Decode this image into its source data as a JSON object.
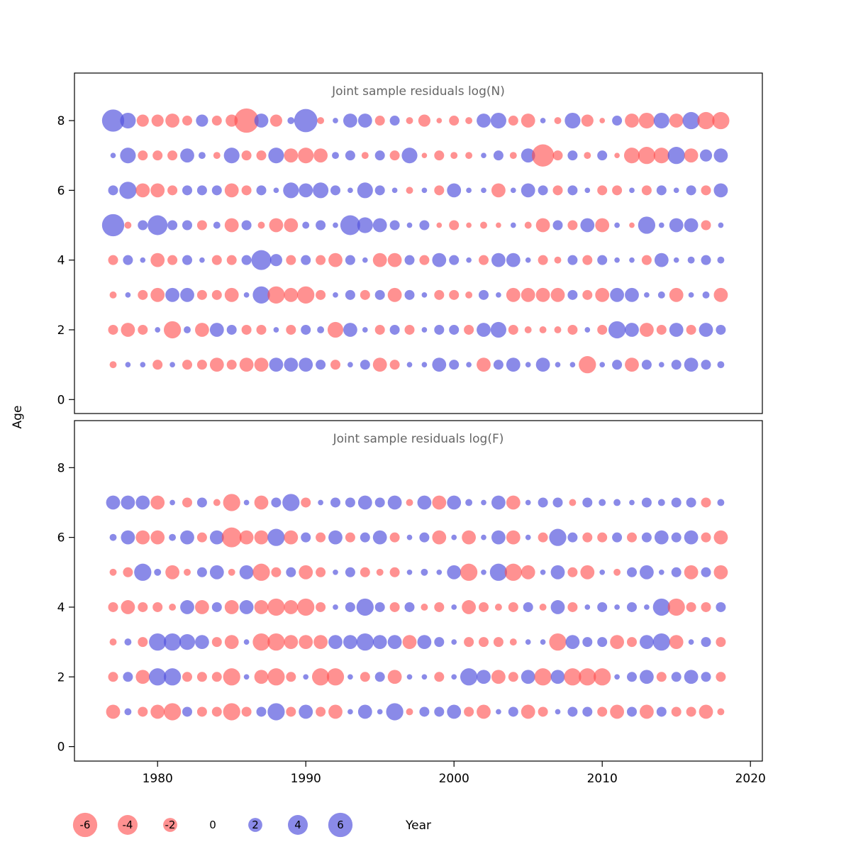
{
  "figure": {
    "ylab": "Age",
    "xlab": "Year",
    "x_ticks": [
      1980,
      1990,
      2000,
      2010,
      2020
    ],
    "y_ticks": [
      0,
      2,
      4,
      6,
      8
    ],
    "colors": {
      "negative": "#ff4d4d",
      "positive": "#5252dd",
      "negative_opacity": 0.62,
      "positive_opacity": 0.68,
      "title_gray": "#666666",
      "axis_black": "#000000"
    },
    "legend": {
      "values": [
        -6,
        -4,
        -2,
        0,
        2,
        4,
        6
      ]
    }
  },
  "chart_data": [
    {
      "type": "scatter",
      "subtype": "bubble-residuals",
      "title": "Joint sample residuals log(N)",
      "xlabel": "Year",
      "ylabel": "Age",
      "xlim": [
        1975,
        2020
      ],
      "ylim": [
        0,
        8.5
      ],
      "years": [
        1977,
        1978,
        1979,
        1980,
        1981,
        1982,
        1983,
        1984,
        1985,
        1986,
        1987,
        1988,
        1989,
        1990,
        1991,
        1992,
        1993,
        1994,
        1995,
        1996,
        1997,
        1998,
        1999,
        2000,
        2001,
        2002,
        2003,
        2004,
        2005,
        2006,
        2007,
        2008,
        2009,
        2010,
        2011,
        2012,
        2013,
        2014,
        2015,
        2016,
        2017,
        2018
      ],
      "series": [
        {
          "age": 8,
          "values": [
            5,
            2.5,
            -1.5,
            -1.5,
            -2,
            -1,
            1.5,
            -1,
            -1.5,
            -6,
            2,
            -1.5,
            0.5,
            5.5,
            -0.5,
            0.3,
            2,
            2,
            -1,
            1,
            -0.5,
            -1.5,
            -0.3,
            -1,
            -0.5,
            2,
            2.5,
            -1,
            -2,
            0.3,
            -0.5,
            2.5,
            -1.5,
            -0.3,
            1,
            -2,
            -2.5,
            2.5,
            -2,
            3,
            -3,
            -3
          ]
        },
        {
          "age": 7,
          "values": [
            0.3,
            2.5,
            -1,
            -1,
            -1,
            2,
            0.5,
            -0.5,
            2.5,
            -1,
            -1,
            2.5,
            -2,
            -2.5,
            -2,
            0.5,
            1,
            -0.5,
            1,
            -1,
            2.5,
            -0.3,
            -1,
            -0.5,
            -0.5,
            0.3,
            1,
            -0.5,
            2,
            -5,
            -1,
            1,
            -0.5,
            1,
            -0.3,
            -2.5,
            -3,
            -2.5,
            3,
            -2,
            1.5,
            2
          ]
        },
        {
          "age": 6,
          "values": [
            1,
            3,
            -2,
            -2,
            -1,
            1,
            1,
            1,
            -2,
            -1,
            1,
            0.3,
            2.5,
            2,
            2.5,
            1,
            0.3,
            2.5,
            1,
            0.3,
            -0.5,
            0.3,
            -1,
            2,
            0.3,
            0.3,
            -2,
            0.3,
            2,
            1,
            -1,
            1,
            0.3,
            -1,
            -1,
            0.3,
            -1,
            1,
            0.3,
            1,
            -1,
            2
          ]
        },
        {
          "age": 5,
          "values": [
            5,
            -0.5,
            1,
            4,
            1,
            1,
            -1,
            0.5,
            -2,
            1,
            -0.5,
            -2,
            -2,
            0.5,
            1,
            0.3,
            4,
            2.5,
            2,
            1,
            0.3,
            1,
            -0.3,
            -1,
            -0.3,
            -0.5,
            -0.3,
            0.3,
            -0.5,
            -2,
            1,
            -1,
            2,
            -2,
            0.3,
            -0.3,
            3,
            0.3,
            2,
            2,
            -1,
            0.3
          ]
        },
        {
          "age": 4,
          "values": [
            -1,
            1,
            0.3,
            -2,
            -1,
            1,
            0.3,
            -1,
            -1,
            1,
            4,
            1.5,
            -1,
            1,
            -1,
            -2,
            1,
            0.3,
            -2,
            -2,
            1,
            -1,
            2,
            1,
            0.3,
            -1,
            2,
            2,
            0.3,
            -1,
            -0.5,
            1,
            -1,
            1,
            0.3,
            0.3,
            -1,
            2,
            0.3,
            0.5,
            1,
            0.5
          ]
        },
        {
          "age": 3,
          "values": [
            -0.5,
            0.3,
            -1,
            -2,
            2,
            2,
            -1,
            -1,
            -2,
            0.3,
            3,
            -3,
            -2,
            -3,
            -1,
            0.3,
            1,
            -1,
            1,
            -2,
            1,
            0.3,
            -1,
            -1,
            -0.5,
            1,
            0.3,
            -2,
            -2,
            -2,
            -2,
            1,
            -1,
            -2,
            2,
            2,
            0.3,
            0.5,
            -2,
            0.3,
            0.5,
            -2
          ]
        },
        {
          "age": 2,
          "values": [
            -1,
            -2,
            -1,
            0.3,
            -3,
            0.5,
            -2,
            2,
            1,
            -1,
            -1,
            0.3,
            -1,
            1,
            0.5,
            -2.5,
            2,
            0.3,
            -1,
            1,
            -1,
            0.3,
            1,
            1,
            -1,
            2,
            2.5,
            -1,
            -0.5,
            -0.5,
            -0.5,
            -1,
            0.3,
            -1,
            3,
            2,
            -2,
            -1,
            2,
            -1,
            2,
            1
          ]
        },
        {
          "age": 1,
          "values": [
            -0.5,
            0.3,
            0.3,
            -1,
            0.3,
            -1,
            -1,
            -2,
            -1,
            -2,
            -2,
            2,
            2,
            2,
            1,
            -1,
            0.3,
            1,
            -2,
            -1,
            0.3,
            0.3,
            2,
            1,
            0.3,
            -2,
            1,
            2,
            0.3,
            2,
            0.3,
            0.3,
            -3,
            0.3,
            1,
            -2,
            1,
            0.3,
            1,
            2,
            1,
            0.5
          ]
        }
      ]
    },
    {
      "type": "scatter",
      "subtype": "bubble-residuals",
      "title": "Joint sample residuals log(F)",
      "xlabel": "Year",
      "ylabel": "Age",
      "xlim": [
        1975,
        2020
      ],
      "ylim": [
        0,
        8.5
      ],
      "years": [
        1977,
        1978,
        1979,
        1980,
        1981,
        1982,
        1983,
        1984,
        1985,
        1986,
        1987,
        1988,
        1989,
        1990,
        1991,
        1992,
        1993,
        1994,
        1995,
        1996,
        1997,
        1998,
        1999,
        2000,
        2001,
        2002,
        2003,
        2004,
        2005,
        2006,
        2007,
        2008,
        2009,
        2010,
        2011,
        2012,
        2013,
        2014,
        2015,
        2016,
        2017,
        2018
      ],
      "series": [
        {
          "age": 7,
          "values": [
            2,
            2,
            2,
            -2,
            0.3,
            -1,
            1,
            -0.5,
            -3,
            0.3,
            -2,
            1,
            3,
            -1,
            0.3,
            1,
            1,
            2,
            1,
            2,
            -0.5,
            2,
            -2,
            2,
            0.5,
            0.3,
            2,
            -2,
            0.3,
            1,
            1,
            -0.5,
            1,
            0.5,
            0.5,
            0.3,
            1,
            0.5,
            1,
            1,
            -1,
            0.5
          ]
        },
        {
          "age": 6,
          "values": [
            0.5,
            2,
            -2,
            -2,
            0.5,
            2,
            -1,
            2,
            -4,
            -2,
            -2,
            3,
            -2,
            1,
            -1,
            2,
            -1,
            1,
            2,
            -1,
            0.3,
            1,
            -2,
            0.3,
            -2,
            0.3,
            2,
            -2,
            0.3,
            -1,
            3,
            1,
            -1,
            -1,
            1,
            -1,
            1,
            2,
            1,
            2,
            -1,
            -2
          ]
        },
        {
          "age": 5,
          "values": [
            -0.5,
            -1,
            3,
            0.5,
            -2,
            -0.5,
            1,
            2,
            -0.5,
            2,
            -3,
            -1,
            1,
            -2,
            -1,
            0.3,
            1,
            -1,
            -0.5,
            -1,
            0.3,
            0.5,
            0.3,
            2,
            -3,
            0.3,
            3,
            -3,
            -2,
            0.3,
            2,
            -1,
            -2,
            0.3,
            -0.5,
            1,
            2,
            0.3,
            1,
            -2,
            1,
            -2
          ]
        },
        {
          "age": 4,
          "values": [
            -1,
            -2,
            -1,
            -1,
            -0.5,
            2,
            -2,
            1,
            -2,
            2,
            -2,
            -3,
            -2,
            -3,
            -1,
            0.3,
            1,
            3,
            1,
            -1,
            1,
            -0.5,
            -1,
            0.3,
            -2,
            -1,
            -0.5,
            -1,
            1,
            -0.5,
            2,
            -1,
            0.3,
            1,
            0.3,
            1,
            0.3,
            3,
            -3,
            -1,
            -1,
            1
          ]
        },
        {
          "age": 3,
          "values": [
            -0.5,
            0.5,
            -1,
            3,
            3,
            2.5,
            2,
            -1,
            -2,
            0.3,
            -3,
            -3,
            -2,
            -2,
            -2,
            2,
            2,
            3,
            2,
            2,
            -2,
            2,
            1,
            0.3,
            -1,
            -1,
            -1,
            -0.5,
            0.3,
            0.3,
            -3,
            2,
            1,
            1,
            -2,
            -1,
            2,
            3,
            -2,
            0.3,
            1,
            -1
          ]
        },
        {
          "age": 2,
          "values": [
            -1,
            1,
            -2,
            3,
            3,
            -1,
            -1,
            -1,
            -3,
            0.3,
            -2,
            -3,
            -1,
            0.3,
            -3,
            -3,
            0.3,
            -1,
            1,
            -2,
            0.3,
            0.3,
            -1,
            0.3,
            3,
            2,
            -2,
            -1,
            2,
            -3,
            2,
            -3,
            -3,
            -3,
            0.3,
            1,
            2,
            -1,
            1,
            2,
            1,
            -1
          ]
        },
        {
          "age": 1,
          "values": [
            -2,
            0.5,
            -1,
            -2,
            -3,
            1,
            -1,
            -1,
            -3,
            -1,
            1,
            3,
            -1,
            2,
            -1,
            -2,
            0.3,
            2,
            0.3,
            3,
            -0.5,
            1,
            1,
            2,
            -1,
            -2,
            0.3,
            1,
            -2,
            -1,
            0.3,
            1,
            1,
            -1,
            -2,
            1,
            -2,
            1,
            -1,
            -1,
            -2,
            -0.5
          ]
        }
      ]
    }
  ]
}
